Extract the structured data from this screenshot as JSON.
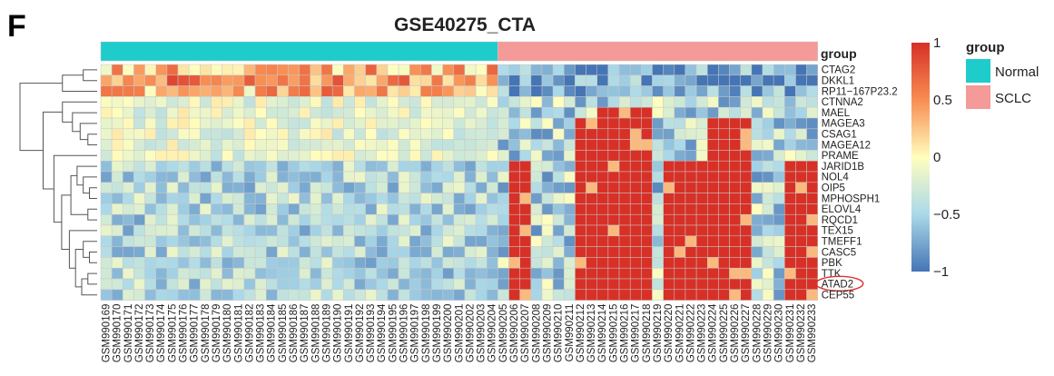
{
  "panel_letter": "F",
  "chart_data": {
    "type": "heatmap",
    "title": "GSE40275_CTA",
    "annotation_label": "group",
    "rows": [
      "CTAG2",
      "DKKL1",
      "RP11−167P23.2",
      "CTNNA2",
      "MAEL",
      "MAGEA3",
      "CSAG1",
      "MAGEA12",
      "PRAME",
      "JARID1B",
      "NOL4",
      "OIP5",
      "MPHOSPH1",
      "ELOVL4",
      "RQCD1",
      "TEX15",
      "TMEFF1",
      "CASC5",
      "PBK",
      "TTK",
      "ATAD2",
      "CEP55"
    ],
    "highlighted_row": "ATAD2",
    "columns": [
      "GSM990169",
      "GSM990170",
      "GSM990171",
      "GSM990172",
      "GSM990173",
      "GSM990174",
      "GSM990175",
      "GSM990176",
      "GSM990177",
      "GSM990178",
      "GSM990179",
      "GSM990180",
      "GSM990181",
      "GSM990182",
      "GSM990183",
      "GSM990184",
      "GSM990185",
      "GSM990186",
      "GSM990187",
      "GSM990188",
      "GSM990189",
      "GSM990190",
      "GSM990191",
      "GSM990192",
      "GSM990193",
      "GSM990194",
      "GSM990195",
      "GSM990196",
      "GSM990197",
      "GSM990198",
      "GSM990199",
      "GSM990200",
      "GSM990201",
      "GSM990202",
      "GSM990203",
      "GSM990204",
      "GSM990205",
      "GSM990206",
      "GSM990207",
      "GSM990208",
      "GSM990209",
      "GSM990210",
      "GSM990211",
      "GSM990212",
      "GSM990213",
      "GSM990214",
      "GSM990215",
      "GSM990216",
      "GSM990217",
      "GSM990218",
      "GSM990219",
      "GSM990220",
      "GSM990221",
      "GSM990222",
      "GSM990223",
      "GSM990224",
      "GSM990225",
      "GSM990226",
      "GSM990227",
      "GSM990228",
      "GSM990229",
      "GSM990230",
      "GSM990231",
      "GSM990232",
      "GSM990233"
    ],
    "groups": {
      "Normal": {
        "start": 0,
        "count": 36
      },
      "SCLC": {
        "start": 36,
        "count": 29
      }
    },
    "color_scale": {
      "min": -1,
      "max": 1,
      "ticks": [
        1,
        0.5,
        0,
        -0.5,
        -1
      ],
      "tick_labels": [
        "1",
        "0.5",
        "0",
        "−0.5",
        "−1"
      ],
      "colors": [
        "#4575b4",
        "#abd9e9",
        "#fffebe",
        "#f88d52",
        "#d73027"
      ]
    },
    "legend": {
      "title": "group",
      "entries": [
        {
          "label": "Normal",
          "color": "#1fcccc"
        },
        {
          "label": "SCLC",
          "color": "#f49a98"
        }
      ]
    },
    "cluster_high_columns": {
      "JARID1B": [
        37,
        38,
        43,
        44,
        45,
        46,
        47,
        48,
        49,
        51,
        52,
        53,
        54,
        55,
        56,
        57,
        58,
        62,
        63,
        64
      ],
      "NOL4": [
        37,
        38,
        43,
        44,
        45,
        46,
        47,
        48,
        49,
        51,
        52,
        53,
        54,
        55,
        56,
        57,
        58,
        62,
        63,
        64
      ],
      "MAGEA3": [
        43,
        44,
        45,
        46,
        47,
        48,
        49,
        55,
        56,
        57,
        58
      ],
      "MAEL": [
        45,
        46,
        47,
        48,
        49
      ]
    }
  }
}
